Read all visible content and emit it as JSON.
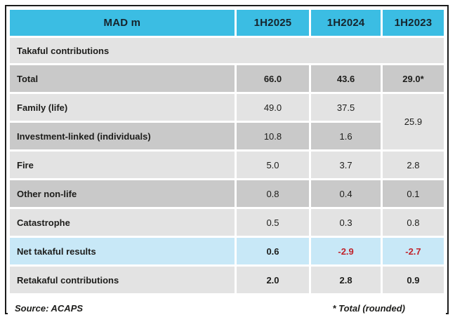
{
  "header": {
    "unit": "MAD m",
    "periods": [
      "1H2025",
      "1H2024",
      "1H2023"
    ]
  },
  "section_label": "Takaful contributions",
  "rows": {
    "total": {
      "label": "Total",
      "v1": "66.0",
      "v2": "43.6",
      "v3": "29.0*"
    },
    "family": {
      "label": "Family (life)",
      "v1": "49.0",
      "v2": "37.5"
    },
    "merged_1h2023": "25.9",
    "investment": {
      "label": "Investment-linked (individuals)",
      "v1": "10.8",
      "v2": "1.6"
    },
    "fire": {
      "label": "Fire",
      "v1": "5.0",
      "v2": "3.7",
      "v3": "2.8"
    },
    "other": {
      "label": "Other non-life",
      "v1": "0.8",
      "v2": "0.4",
      "v3": "0.1"
    },
    "catastrophe": {
      "label": "Catastrophe",
      "v1": "0.5",
      "v2": "0.3",
      "v3": "0.8"
    },
    "net": {
      "label": "Net takaful results",
      "v1": "0.6",
      "v2": "-2.9",
      "v3": "-2.7"
    },
    "retakaful": {
      "label": "Retakaful contributions",
      "v1": "2.0",
      "v2": "2.8",
      "v3": "0.9"
    }
  },
  "footer": {
    "source": "Source: ACAPS",
    "note": "* Total (rounded)"
  },
  "colors": {
    "header_bg": "#3bbde3",
    "row_dark": "#c9c9c9",
    "row_light": "#e3e3e3",
    "highlight_blue": "#c8e8f7",
    "negative_red": "#c0232b",
    "text": "#1d1d1b",
    "border": "#1c1c1c"
  },
  "chart_data": {
    "type": "table",
    "title": "MAD m",
    "columns": [
      "1H2025",
      "1H2024",
      "1H2023"
    ],
    "section": "Takaful contributions",
    "rows": [
      {
        "label": "Total",
        "values": [
          66.0,
          43.6,
          29.0
        ],
        "note": "1H2023 value shown as 29.0* (Total rounded)",
        "style": "bold, dark gray row"
      },
      {
        "label": "Family (life)",
        "values": [
          49.0,
          37.5,
          25.9
        ],
        "note": "1H2023 cell 25.9 is merged across Family (life) and Investment-linked rows"
      },
      {
        "label": "Investment-linked (individuals)",
        "values": [
          10.8,
          1.6,
          25.9
        ],
        "note": "1H2023 shares merged 25.9 cell"
      },
      {
        "label": "Fire",
        "values": [
          5.0,
          3.7,
          2.8
        ]
      },
      {
        "label": "Other non-life",
        "values": [
          0.8,
          0.4,
          0.1
        ]
      },
      {
        "label": "Catastrophe",
        "values": [
          0.5,
          0.3,
          0.8
        ]
      },
      {
        "label": "Net takaful results",
        "values": [
          0.6,
          -2.9,
          -2.7
        ],
        "style": "light blue highlight row, negatives in red"
      },
      {
        "label": "Retakaful contributions",
        "values": [
          2.0,
          2.8,
          0.9
        ],
        "style": "bold values"
      }
    ],
    "source": "Source: ACAPS",
    "footnote": "* Total (rounded)",
    "legend_position": "none",
    "grid": "white 3px gaps between cells"
  }
}
